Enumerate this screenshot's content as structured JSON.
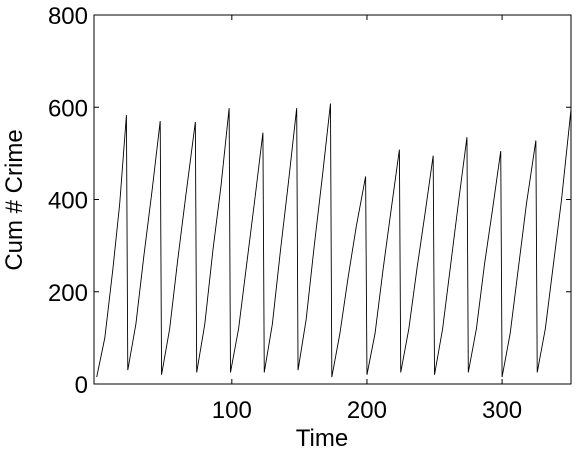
{
  "chart_data": {
    "type": "line",
    "xlabel": "Time",
    "ylabel": "Cum # Crime",
    "x": [
      0,
      6,
      12,
      17,
      22,
      23,
      29,
      35,
      41,
      47,
      48,
      54,
      60,
      66,
      73,
      74,
      80,
      86,
      92,
      98,
      99,
      105,
      111,
      117,
      123,
      124,
      130,
      136,
      142,
      148,
      149,
      155,
      161,
      167,
      173,
      174,
      180,
      186,
      192,
      199,
      200,
      206,
      212,
      218,
      224,
      225,
      231,
      237,
      243,
      249,
      250,
      256,
      262,
      268,
      274,
      275,
      281,
      287,
      293,
      299,
      300,
      306,
      312,
      318,
      325,
      326,
      332,
      338,
      344,
      351
    ],
    "series": [
      {
        "name": "Cum # Crime",
        "color": "#000000",
        "values": [
          15,
          100,
          250,
          390,
          583,
          30,
          130,
          280,
          420,
          570,
          20,
          120,
          270,
          410,
          568,
          25,
          130,
          290,
          430,
          598,
          25,
          120,
          260,
          400,
          545,
          25,
          130,
          290,
          440,
          598,
          30,
          140,
          300,
          450,
          608,
          15,
          110,
          230,
          340,
          450,
          20,
          110,
          250,
          380,
          508,
          25,
          120,
          250,
          370,
          495,
          20,
          120,
          260,
          400,
          535,
          25,
          120,
          260,
          380,
          505,
          15,
          110,
          250,
          390,
          528,
          25,
          120,
          260,
          400,
          595
        ]
      }
    ],
    "xlim": [
      -2,
      351
    ],
    "ylim": [
      0,
      800
    ],
    "xticks": [
      100,
      200,
      300
    ],
    "yticks": [
      0,
      200,
      400,
      600,
      800
    ]
  }
}
